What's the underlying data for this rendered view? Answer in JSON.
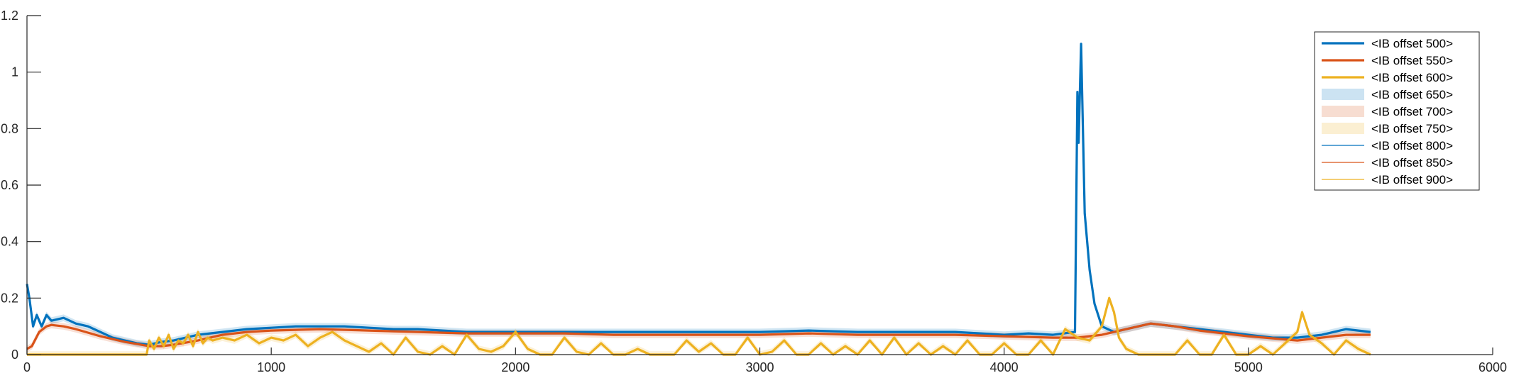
{
  "chart_data": {
    "type": "line",
    "title": "",
    "xlabel": "",
    "ylabel": "",
    "xlim": [
      0,
      6000
    ],
    "ylim": [
      0,
      1.2
    ],
    "xticks": [
      0,
      1000,
      2000,
      3000,
      4000,
      5000,
      6000
    ],
    "xtick_labels": [
      "0",
      "1000",
      "2000",
      "3000",
      "4000",
      "5000",
      "6000"
    ],
    "yticks": [
      0,
      0.2,
      0.4,
      0.6,
      0.8,
      1,
      1.2
    ],
    "ytick_labels": [
      "0",
      "0.2",
      "0.4",
      "0.6",
      "0.8",
      "1",
      "1.2"
    ],
    "grid": false,
    "legend_position": "top-right",
    "colors": {
      "blue": "#0072BD",
      "orange": "#D95319",
      "yellow": "#EDB120",
      "axis": "#262626"
    },
    "series": [
      {
        "name": "<IB offset 500>",
        "style": "thick-line",
        "color": "#0072BD",
        "x": [
          0,
          10,
          25,
          40,
          60,
          80,
          100,
          150,
          200,
          250,
          300,
          350,
          400,
          450,
          500,
          550,
          600,
          700,
          800,
          900,
          1000,
          1100,
          1200,
          1300,
          1400,
          1500,
          1600,
          1700,
          1800,
          1900,
          2000,
          2200,
          2400,
          2600,
          2800,
          3000,
          3200,
          3400,
          3600,
          3800,
          4000,
          4100,
          4200,
          4290,
          4300,
          4305,
          4315,
          4320,
          4330,
          4350,
          4370,
          4400,
          4450,
          4500,
          4600,
          4700,
          4800,
          4900,
          5000,
          5100,
          5200,
          5300,
          5400,
          5500
        ],
        "y": [
          0.25,
          0.2,
          0.1,
          0.14,
          0.1,
          0.14,
          0.12,
          0.13,
          0.11,
          0.1,
          0.08,
          0.06,
          0.05,
          0.04,
          0.035,
          0.045,
          0.05,
          0.07,
          0.08,
          0.09,
          0.095,
          0.1,
          0.1,
          0.1,
          0.095,
          0.09,
          0.09,
          0.085,
          0.08,
          0.08,
          0.08,
          0.08,
          0.08,
          0.08,
          0.08,
          0.08,
          0.085,
          0.08,
          0.08,
          0.08,
          0.07,
          0.075,
          0.07,
          0.08,
          0.93,
          0.75,
          1.1,
          0.9,
          0.5,
          0.3,
          0.18,
          0.1,
          0.08,
          0.09,
          0.11,
          0.1,
          0.09,
          0.08,
          0.07,
          0.06,
          0.06,
          0.07,
          0.09,
          0.08
        ]
      },
      {
        "name": "<IB offset 550>",
        "style": "thick-line",
        "color": "#D95319",
        "x": [
          0,
          20,
          50,
          80,
          100,
          150,
          200,
          300,
          400,
          500,
          550,
          600,
          700,
          800,
          900,
          1000,
          1200,
          1400,
          1600,
          1800,
          2000,
          2200,
          2400,
          2600,
          2800,
          3000,
          3200,
          3400,
          3600,
          3800,
          4000,
          4200,
          4300,
          4400,
          4500,
          4600,
          4700,
          4800,
          4900,
          5000,
          5200,
          5300,
          5400,
          5500
        ],
        "y": [
          0.02,
          0.03,
          0.08,
          0.1,
          0.105,
          0.1,
          0.09,
          0.065,
          0.045,
          0.03,
          0.03,
          0.035,
          0.05,
          0.07,
          0.08,
          0.085,
          0.09,
          0.085,
          0.08,
          0.075,
          0.075,
          0.075,
          0.07,
          0.07,
          0.07,
          0.07,
          0.075,
          0.07,
          0.07,
          0.07,
          0.065,
          0.06,
          0.06,
          0.07,
          0.09,
          0.11,
          0.1,
          0.085,
          0.075,
          0.065,
          0.05,
          0.06,
          0.07,
          0.07
        ]
      },
      {
        "name": "<IB offset 600>",
        "style": "thick-line",
        "color": "#EDB120",
        "x": [
          0,
          490,
          500,
          520,
          540,
          560,
          580,
          600,
          620,
          640,
          660,
          680,
          700,
          720,
          740,
          760,
          800,
          850,
          900,
          950,
          1000,
          1050,
          1100,
          1150,
          1200,
          1250,
          1300,
          1350,
          1400,
          1450,
          1500,
          1550,
          1600,
          1650,
          1700,
          1750,
          1800,
          1850,
          1900,
          1950,
          2000,
          2050,
          2100,
          2150,
          2200,
          2250,
          2300,
          2350,
          2400,
          2450,
          2500,
          2550,
          2600,
          2650,
          2700,
          2750,
          2800,
          2850,
          2900,
          2950,
          3000,
          3050,
          3100,
          3150,
          3200,
          3250,
          3300,
          3350,
          3400,
          3450,
          3500,
          3550,
          3600,
          3650,
          3700,
          3750,
          3800,
          3850,
          3900,
          3950,
          4000,
          4050,
          4100,
          4150,
          4200,
          4250,
          4300,
          4350,
          4400,
          4430,
          4450,
          4470,
          4500,
          4550,
          4600,
          4700,
          4750,
          4800,
          4850,
          4900,
          4950,
          5000,
          5050,
          5100,
          5150,
          5200,
          5220,
          5250,
          5300,
          5350,
          5400,
          5450,
          5500
        ],
        "y": [
          0.0,
          0.0,
          0.05,
          0.02,
          0.06,
          0.03,
          0.07,
          0.02,
          0.05,
          0.04,
          0.07,
          0.03,
          0.08,
          0.04,
          0.06,
          0.05,
          0.06,
          0.05,
          0.07,
          0.04,
          0.06,
          0.05,
          0.07,
          0.03,
          0.06,
          0.08,
          0.05,
          0.03,
          0.01,
          0.04,
          0.0,
          0.06,
          0.01,
          0.0,
          0.03,
          0.0,
          0.07,
          0.02,
          0.01,
          0.03,
          0.08,
          0.02,
          0.0,
          0.0,
          0.06,
          0.01,
          0.0,
          0.04,
          0.0,
          0.0,
          0.02,
          0.0,
          0.0,
          0.0,
          0.05,
          0.01,
          0.04,
          0.0,
          0.0,
          0.06,
          0.0,
          0.01,
          0.05,
          0.0,
          0.0,
          0.04,
          0.0,
          0.03,
          0.0,
          0.05,
          0.0,
          0.06,
          0.0,
          0.04,
          0.0,
          0.03,
          0.0,
          0.05,
          0.0,
          0.0,
          0.04,
          0.0,
          0.0,
          0.05,
          0.0,
          0.09,
          0.06,
          0.05,
          0.1,
          0.2,
          0.15,
          0.06,
          0.02,
          0.0,
          0.0,
          0.0,
          0.05,
          0.0,
          0.0,
          0.07,
          0.0,
          0.0,
          0.03,
          0.0,
          0.04,
          0.08,
          0.15,
          0.07,
          0.04,
          0.0,
          0.05,
          0.02,
          0.0
        ]
      },
      {
        "name": "<IB offset 650>",
        "style": "band",
        "color": "#0072BD",
        "opacity": 0.2
      },
      {
        "name": "<IB offset 700>",
        "style": "band",
        "color": "#D95319",
        "opacity": 0.2
      },
      {
        "name": "<IB offset 750>",
        "style": "band",
        "color": "#EDB120",
        "opacity": 0.2
      },
      {
        "name": "<IB offset 800>",
        "style": "thin-line",
        "color": "#0072BD"
      },
      {
        "name": "<IB offset 850>",
        "style": "thin-line",
        "color": "#D95319"
      },
      {
        "name": "<IB offset 900>",
        "style": "thin-line",
        "color": "#EDB120"
      }
    ]
  }
}
